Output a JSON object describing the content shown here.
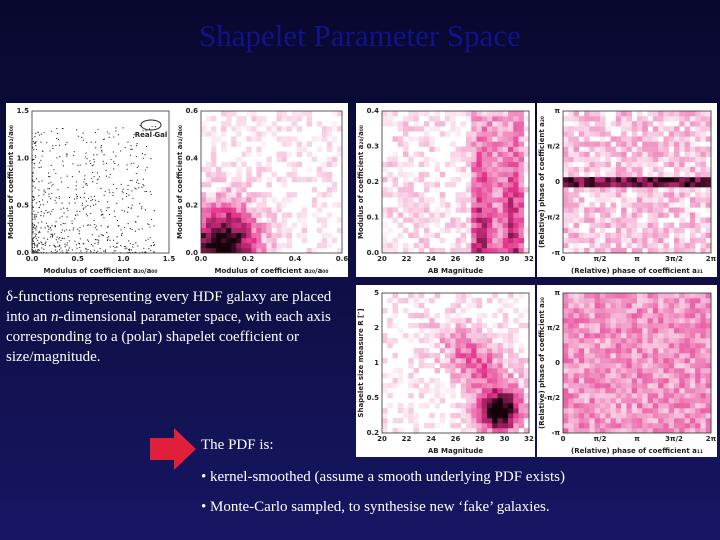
{
  "title": "Shapelet Parameter Space",
  "panels": [
    {
      "x_label": "Modulus of coefficient a₂₀/a₀₀",
      "y_label": "Modulus of coefficient a₀₂/a₀₀",
      "x_ticks": [
        "0.0",
        "0.5",
        "1.0",
        "1.5"
      ],
      "y_ticks": [
        "0.0",
        "0.5",
        "1.0",
        "1.5"
      ],
      "inset": "Real Gal"
    },
    {
      "x_label": "Modulus of coefficient a₂₀/a₀₀",
      "y_label": "Modulus of coefficient a₀₂/a₀₀",
      "x_ticks": [
        "0.0",
        "0.2",
        "0.4",
        "0.6"
      ],
      "y_ticks": [
        "0.0",
        "0.2",
        "0.4",
        "0.6"
      ]
    },
    {
      "x_label": "AB Magnitude",
      "y_label": "Modulus of coefficient a₂₀/a₀₀",
      "x_ticks": [
        "20",
        "22",
        "24",
        "26",
        "28",
        "30",
        "32"
      ],
      "y_ticks": [
        "0.0",
        "0.1",
        "0.2",
        "0.3",
        "0.4"
      ]
    },
    {
      "x_label": "(Relative) phase of coefficient a₃₁",
      "y_label": "(Relative) phase of coefficient a₂₀",
      "x_ticks": [
        "0",
        "π/2",
        "π",
        "3π/2",
        "2π"
      ],
      "y_ticks": [
        "-π",
        "-π/2",
        "0",
        "π/2",
        "π"
      ]
    },
    {
      "x_label": "AB Magnitude",
      "y_label": "Shapelet size measure R [″]",
      "x_ticks": [
        "20",
        "22",
        "24",
        "26",
        "28",
        "30",
        "32"
      ],
      "y_ticks": [
        "0.2",
        "0.5",
        "1",
        "2",
        "5"
      ]
    },
    {
      "x_label": "(Relative) phase of coefficient a₁₁",
      "y_label": "(Relative) phase of coefficient a₂₀",
      "x_ticks": [
        "0",
        "π/2",
        "π",
        "3π/2",
        "2π"
      ],
      "y_ticks": [
        "-π",
        "-π/2",
        "0",
        "π/2",
        "π"
      ]
    }
  ],
  "description": {
    "before": "δ-functions representing every HDF galaxy are placed into an ",
    "italic": "n",
    "after": "-dimensional parameter space, with each axis corresponding to a (polar) shapelet coefficient or size/magnitude."
  },
  "pdf_heading": "The PDF is:",
  "bullets": [
    "• kernel-smoothed (assume a smooth underlying PDF exists)",
    "• Monte-Carlo sampled, to synthesise new ‘fake’ galaxies."
  ]
}
